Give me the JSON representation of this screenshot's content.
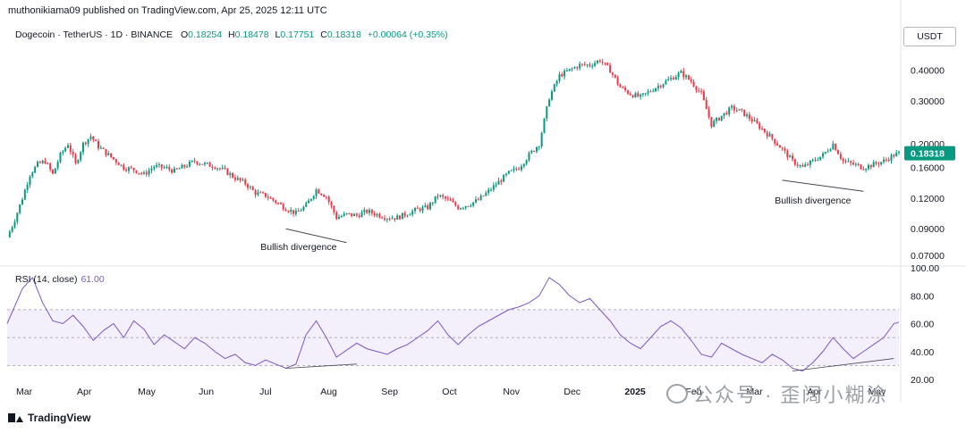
{
  "header": {
    "published_text": "muthonikiama09 published on TradingView.com, Apr 25, 2025 12:11 UTC"
  },
  "legend": {
    "symbol": "Dogecoin · TetherUS · 1D · BINANCE",
    "open_label": "O",
    "open_value": "0.18254",
    "high_label": "H",
    "high_value": "0.18478",
    "low_label": "L",
    "low_value": "0.17751",
    "close_label": "C",
    "close_value": "0.18318",
    "change": "+0.00064 (+0.35%)"
  },
  "currency": "USDT",
  "price_axis": {
    "ticks": [
      "0.40000",
      "0.30000",
      "0.20000",
      "0.16000",
      "0.12000",
      "0.09000",
      "0.07000"
    ],
    "last_price_label": "0.18318"
  },
  "rsi": {
    "label": "RSI (14, close)",
    "value": "61.00",
    "ticks": [
      "100.00",
      "80.00",
      "60.00",
      "40.00",
      "20.00"
    ]
  },
  "time_axis": {
    "labels": [
      "Mar",
      "Apr",
      "May",
      "Jun",
      "Jul",
      "Aug",
      "Sep",
      "Oct",
      "Nov",
      "Dec",
      "2025",
      "Feb",
      "Mar",
      "Apr",
      "May"
    ]
  },
  "annotations": {
    "divergence_1": "Bullish divergence",
    "divergence_2": "Bullish divergence"
  },
  "footer": {
    "brand": "TradingView"
  },
  "watermark": {
    "text": "公众号 · 歪阔小糊涂"
  },
  "colors": {
    "up": "#089981",
    "down": "#f23645",
    "rsi_line": "#7e57c2",
    "rsi_band": "#f3effb"
  },
  "chart_data": [
    {
      "type": "candlestick",
      "title": "Dogecoin / TetherUS · 1D · BINANCE",
      "scale": "log",
      "ylim": [
        0.065,
        0.5
      ],
      "x": [
        "2024-03",
        "2024-04",
        "2024-05",
        "2024-06",
        "2024-07",
        "2024-08",
        "2024-09",
        "2024-10",
        "2024-11",
        "2024-12",
        "2025-01",
        "2025-02",
        "2025-03",
        "2025-04"
      ],
      "close_path": [
        [
          0,
          0.083
        ],
        [
          3,
          0.098
        ],
        [
          6,
          0.12
        ],
        [
          9,
          0.15
        ],
        [
          12,
          0.165
        ],
        [
          15,
          0.17
        ],
        [
          18,
          0.15
        ],
        [
          21,
          0.18
        ],
        [
          24,
          0.2
        ],
        [
          27,
          0.165
        ],
        [
          30,
          0.2
        ],
        [
          33,
          0.215
        ],
        [
          36,
          0.195
        ],
        [
          40,
          0.18
        ],
        [
          43,
          0.17
        ],
        [
          46,
          0.16
        ],
        [
          50,
          0.157
        ],
        [
          54,
          0.15
        ],
        [
          58,
          0.162
        ],
        [
          62,
          0.16
        ],
        [
          66,
          0.155
        ],
        [
          70,
          0.162
        ],
        [
          74,
          0.17
        ],
        [
          78,
          0.165
        ],
        [
          82,
          0.162
        ],
        [
          86,
          0.155
        ],
        [
          90,
          0.145
        ],
        [
          94,
          0.138
        ],
        [
          98,
          0.126
        ],
        [
          102,
          0.123
        ],
        [
          106,
          0.116
        ],
        [
          110,
          0.109
        ],
        [
          114,
          0.104
        ],
        [
          118,
          0.112
        ],
        [
          122,
          0.13
        ],
        [
          126,
          0.122
        ],
        [
          130,
          0.1
        ],
        [
          134,
          0.103
        ],
        [
          138,
          0.102
        ],
        [
          142,
          0.106
        ],
        [
          146,
          0.103
        ],
        [
          150,
          0.1
        ],
        [
          154,
          0.1
        ],
        [
          158,
          0.104
        ],
        [
          162,
          0.108
        ],
        [
          166,
          0.11
        ],
        [
          170,
          0.123
        ],
        [
          174,
          0.118
        ],
        [
          178,
          0.11
        ],
        [
          182,
          0.113
        ],
        [
          186,
          0.118
        ],
        [
          190,
          0.128
        ],
        [
          194,
          0.14
        ],
        [
          198,
          0.152
        ],
        [
          202,
          0.16
        ],
        [
          206,
          0.18
        ],
        [
          210,
          0.2
        ],
        [
          214,
          0.31
        ],
        [
          218,
          0.38
        ],
        [
          222,
          0.4
        ],
        [
          226,
          0.42
        ],
        [
          230,
          0.42
        ],
        [
          234,
          0.44
        ],
        [
          238,
          0.4
        ],
        [
          242,
          0.34
        ],
        [
          246,
          0.32
        ],
        [
          250,
          0.31
        ],
        [
          254,
          0.33
        ],
        [
          258,
          0.35
        ],
        [
          262,
          0.37
        ],
        [
          266,
          0.39
        ],
        [
          270,
          0.36
        ],
        [
          274,
          0.32
        ],
        [
          278,
          0.24
        ],
        [
          282,
          0.26
        ],
        [
          286,
          0.28
        ],
        [
          290,
          0.27
        ],
        [
          294,
          0.25
        ],
        [
          298,
          0.23
        ],
        [
          302,
          0.21
        ],
        [
          306,
          0.19
        ],
        [
          310,
          0.17
        ],
        [
          314,
          0.16
        ],
        [
          318,
          0.17
        ],
        [
          322,
          0.18
        ],
        [
          326,
          0.2
        ],
        [
          330,
          0.17
        ],
        [
          334,
          0.165
        ],
        [
          338,
          0.16
        ],
        [
          342,
          0.165
        ],
        [
          346,
          0.17
        ],
        [
          350,
          0.18
        ],
        [
          352,
          0.183
        ]
      ]
    },
    {
      "type": "line",
      "title": "RSI (14, close)",
      "ylim": [
        20,
        100
      ],
      "bands": [
        30,
        50,
        70
      ],
      "series": [
        {
          "name": "RSI (14, close)",
          "values": [
            [
              0,
              60
            ],
            [
              6,
              85
            ],
            [
              10,
              93
            ],
            [
              14,
              75
            ],
            [
              18,
              62
            ],
            [
              22,
              60
            ],
            [
              26,
              66
            ],
            [
              30,
              58
            ],
            [
              34,
              48
            ],
            [
              38,
              55
            ],
            [
              42,
              60
            ],
            [
              46,
              50
            ],
            [
              50,
              62
            ],
            [
              54,
              56
            ],
            [
              58,
              45
            ],
            [
              62,
              52
            ],
            [
              66,
              47
            ],
            [
              70,
              42
            ],
            [
              74,
              50
            ],
            [
              78,
              46
            ],
            [
              82,
              40
            ],
            [
              86,
              35
            ],
            [
              90,
              38
            ],
            [
              94,
              32
            ],
            [
              98,
              30
            ],
            [
              102,
              34
            ],
            [
              106,
              31
            ],
            [
              110,
              28
            ],
            [
              114,
              31
            ],
            [
              118,
              52
            ],
            [
              122,
              62
            ],
            [
              126,
              50
            ],
            [
              130,
              36
            ],
            [
              134,
              41
            ],
            [
              138,
              46
            ],
            [
              142,
              42
            ],
            [
              146,
              40
            ],
            [
              150,
              38
            ],
            [
              154,
              42
            ],
            [
              158,
              45
            ],
            [
              162,
              50
            ],
            [
              166,
              55
            ],
            [
              170,
              62
            ],
            [
              174,
              52
            ],
            [
              178,
              45
            ],
            [
              182,
              52
            ],
            [
              186,
              58
            ],
            [
              190,
              62
            ],
            [
              194,
              66
            ],
            [
              198,
              70
            ],
            [
              202,
              72
            ],
            [
              206,
              75
            ],
            [
              210,
              80
            ],
            [
              214,
              93
            ],
            [
              218,
              88
            ],
            [
              222,
              80
            ],
            [
              226,
              75
            ],
            [
              230,
              78
            ],
            [
              234,
              70
            ],
            [
              238,
              62
            ],
            [
              242,
              52
            ],
            [
              246,
              46
            ],
            [
              250,
              42
            ],
            [
              254,
              50
            ],
            [
              258,
              58
            ],
            [
              262,
              62
            ],
            [
              266,
              57
            ],
            [
              270,
              48
            ],
            [
              274,
              38
            ],
            [
              278,
              36
            ],
            [
              282,
              46
            ],
            [
              286,
              42
            ],
            [
              290,
              38
            ],
            [
              294,
              35
            ],
            [
              298,
              32
            ],
            [
              302,
              38
            ],
            [
              306,
              34
            ],
            [
              310,
              28
            ],
            [
              314,
              26
            ],
            [
              318,
              32
            ],
            [
              322,
              40
            ],
            [
              326,
              50
            ],
            [
              330,
              42
            ],
            [
              334,
              35
            ],
            [
              338,
              40
            ],
            [
              342,
              45
            ],
            [
              346,
              50
            ],
            [
              350,
              60
            ],
            [
              352,
              61
            ]
          ]
        }
      ]
    }
  ]
}
